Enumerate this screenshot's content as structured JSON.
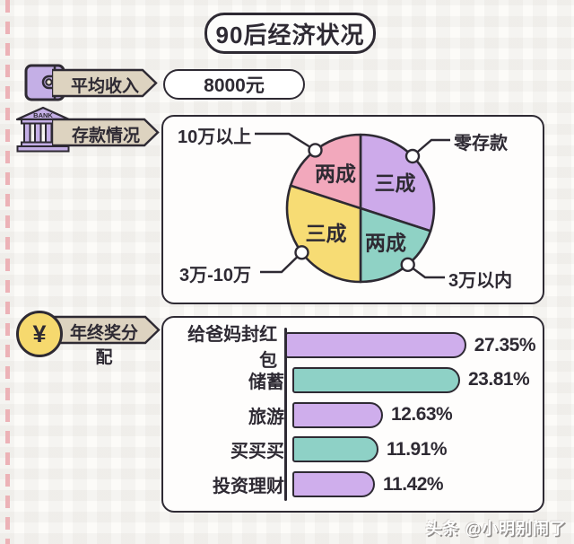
{
  "title": "90后经济状况",
  "watermark": "头条 @小明别闹了",
  "income": {
    "label": "平均收入",
    "value": "8000元"
  },
  "savings": {
    "label": "存款情况",
    "bank_text": "BANK"
  },
  "bonus": {
    "label": "年终奖分配",
    "yuan_symbol": "¥"
  },
  "colors": {
    "outline": "#2e2a33",
    "tag_fill": "#ddd3c0",
    "wallet_purple": "#c4afe6",
    "bank_purple": "#c4afe6",
    "coin_yellow": "#f6d96e",
    "left_dash_pink": "#eba7ad"
  },
  "chart_data": [
    {
      "type": "pie",
      "title": "存款情况",
      "unit": "成 (tenths of respondents)",
      "start_angle_deg": 0,
      "direction": "clockwise",
      "slices": [
        {
          "label": "零存款",
          "share_text": "三成",
          "value": 30,
          "color": "#cdaaea"
        },
        {
          "label": "3万以内",
          "share_text": "两成",
          "value": 20,
          "color": "#8fd2c5"
        },
        {
          "label": "3万-10万",
          "share_text": "三成",
          "value": 30,
          "color": "#f7dc74"
        },
        {
          "label": "10万以上",
          "share_text": "两成",
          "value": 20,
          "color": "#f2a8bc"
        }
      ]
    },
    {
      "type": "bar",
      "title": "年终奖分配",
      "orientation": "horizontal",
      "categories": [
        "给爸妈封红包",
        "储蓄",
        "旅游",
        "买买买",
        "投资理财"
      ],
      "values": [
        27.35,
        23.81,
        12.63,
        11.91,
        11.42
      ],
      "value_labels": [
        "27.35%",
        "23.81%",
        "12.63%",
        "11.91%",
        "11.42%"
      ],
      "bar_colors": [
        "#cfaeec",
        "#8ed1c6",
        "#cfaeec",
        "#8ed1c6",
        "#cfaeec"
      ],
      "xlim": [
        0,
        30
      ],
      "grid": false,
      "legend": false
    }
  ]
}
